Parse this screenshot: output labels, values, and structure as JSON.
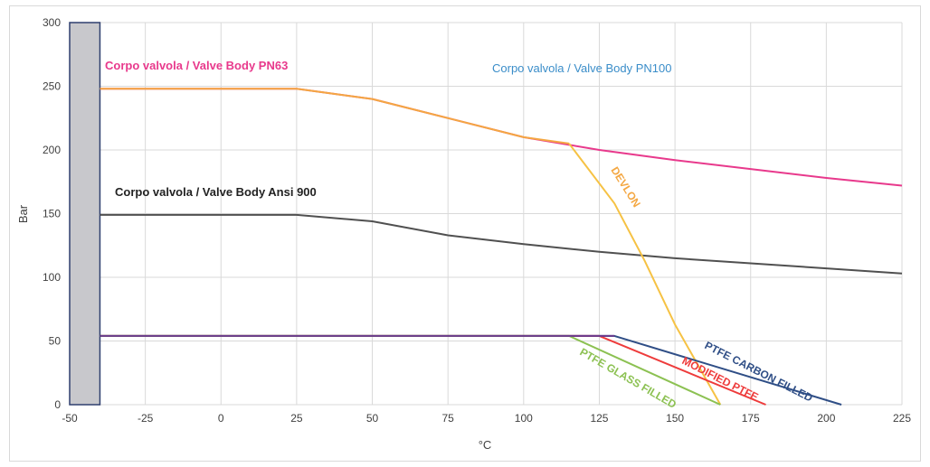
{
  "chart_data": {
    "type": "line",
    "title": "",
    "xlabel": "°C",
    "ylabel": "Bar",
    "xlim": [
      -50,
      225
    ],
    "ylim": [
      0,
      300
    ],
    "x_ticks": [
      -50,
      -25,
      0,
      25,
      50,
      75,
      100,
      125,
      150,
      175,
      200,
      225
    ],
    "y_ticks": [
      0,
      50,
      100,
      150,
      200,
      250,
      300
    ],
    "x_tick_labels": [
      "-50",
      "-25",
      "0",
      "25",
      "50",
      "75",
      "100",
      "125",
      "150",
      "175",
      "200",
      "225"
    ],
    "y_tick_labels": [
      "0",
      "50",
      "100",
      "150",
      "200",
      "250",
      "300"
    ],
    "grid": true,
    "shaded_region": {
      "x": [
        -50,
        -40
      ],
      "y": [
        0,
        300
      ],
      "color": "#c8c8cc"
    },
    "series": [
      {
        "name": "Corpo valvola / Valve Body PN100",
        "color": "#e8398c",
        "x": [
          -40,
          25,
          50,
          100,
          125,
          150,
          175,
          200,
          225
        ],
        "y": [
          248,
          248,
          240,
          210,
          200,
          192,
          185,
          178,
          172
        ]
      },
      {
        "name": "Corpo valvola / Valve Body PN63",
        "color": "#f4a742",
        "x": [
          -40,
          25,
          50,
          100,
          115
        ],
        "y": [
          248,
          248,
          240,
          210,
          205
        ]
      },
      {
        "name": "Corpo valvola / Valve Body Ansi 900",
        "color": "#505050",
        "x": [
          -40,
          25,
          50,
          75,
          100,
          125,
          150,
          175,
          200,
          225
        ],
        "y": [
          149,
          149,
          144,
          133,
          126,
          120,
          115,
          111,
          107,
          103
        ]
      },
      {
        "name": "DEVLON",
        "color": "#f6c244",
        "x": [
          115,
          130,
          140,
          150,
          165
        ],
        "y": [
          205,
          158,
          113,
          63,
          0
        ]
      },
      {
        "name": "PTFE CARBON FILLED",
        "color": "#2f4e86",
        "x": [
          -40,
          130,
          205
        ],
        "y": [
          54,
          54,
          0
        ]
      },
      {
        "name": "MODIFIED PTFE",
        "color": "#ee3b3b",
        "x": [
          -40,
          125,
          180
        ],
        "y": [
          54,
          54,
          0
        ]
      },
      {
        "name": "PTFE GLASS FILLED",
        "color": "#8cc152",
        "x": [
          -40,
          115,
          165
        ],
        "y": [
          54,
          54,
          0
        ]
      },
      {
        "name": "",
        "color": "#6a3a8e",
        "x": [
          -40,
          130
        ],
        "y": [
          54,
          54
        ]
      }
    ],
    "annotations": [
      {
        "text": "Corpo valvola / Valve Body PN63",
        "color": "#e8398c"
      },
      {
        "text": "Corpo valvola / Valve Body PN100",
        "color": "#3a8dc9"
      },
      {
        "text": "Corpo valvola / Valve Body Ansi 900",
        "color": "#222222"
      },
      {
        "text": "DEVLON",
        "color": "#f4a742"
      },
      {
        "text": "PTFE CARBON FILLED",
        "color": "#2f4e86"
      },
      {
        "text": "MODIFIED PTFE",
        "color": "#ee3b3b"
      },
      {
        "text": "PTFE GLASS FILLED",
        "color": "#8cc152"
      }
    ]
  }
}
